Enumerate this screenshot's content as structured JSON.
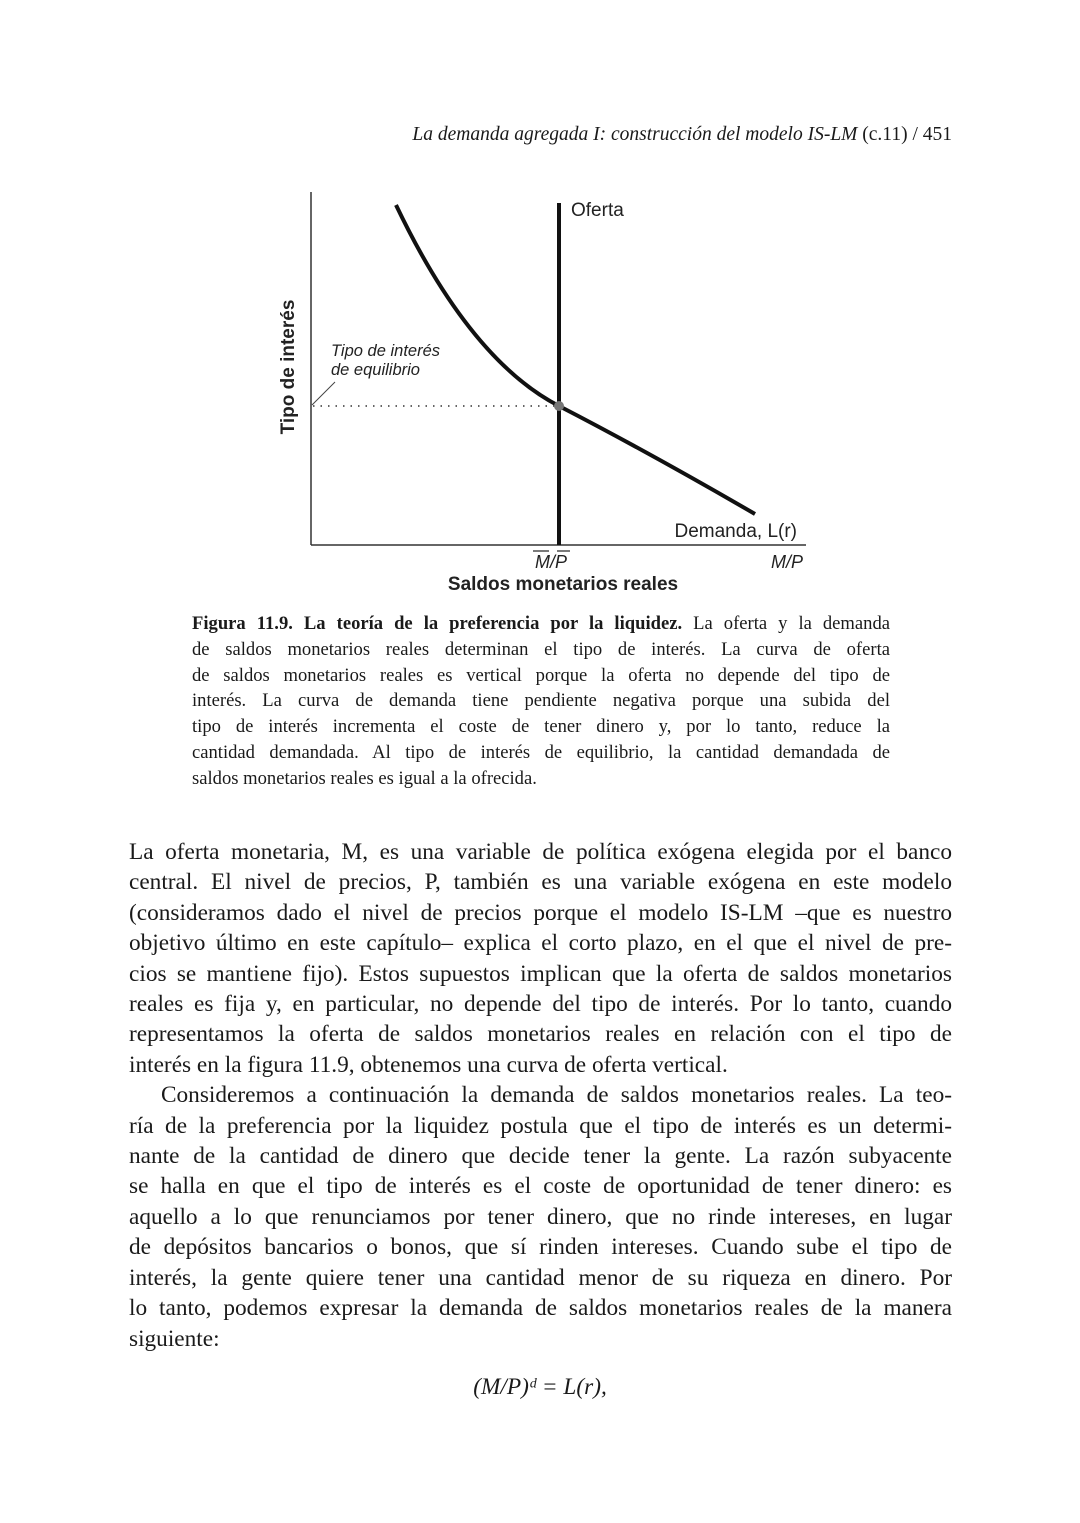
{
  "header": {
    "title": "La demanda agregada I: construcción del modelo IS-LM",
    "chapter": "(c.11)",
    "page": "/ 451"
  },
  "figure": {
    "y_axis_label": "Tipo de interés",
    "x_axis_label": "Saldos monetarios reales",
    "x_axis_end_label": "M/P",
    "x_tick_label": "M/P",
    "supply_label": "Oferta",
    "demand_label": "Demanda, L(r)",
    "equilibrium_label_line1": "Tipo de interés",
    "equilibrium_label_line2": "de equilibrio"
  },
  "caption": {
    "title": "Figura 11.9. La teoría de la preferencia por la liquidez.",
    "first_line_rest": "La oferta y la demanda",
    "lines": [
      "de saldos monetarios reales determinan el tipo de interés. La curva de oferta",
      "de saldos monetarios reales es vertical porque la oferta no depende del tipo de",
      "interés. La curva de demanda tiene pendiente negativa porque una subida del",
      "tipo de interés incrementa el coste de tener dinero y, por lo tanto, reduce la",
      "cantidad demandada. Al tipo de interés de equilibrio, la cantidad demandada de",
      "saldos monetarios reales es igual a la ofrecida."
    ]
  },
  "body": {
    "p1": [
      "La oferta monetaria, M, es una variable de política exógena elegida por el banco",
      "central. El nivel de precios, P, también es una variable exógena en este modelo",
      "(consideramos dado el nivel de precios porque el modelo IS-LM –que es nuestro",
      "objetivo último en este capítulo– explica el corto plazo, en el que el nivel de pre-",
      "cios se mantiene fijo). Estos supuestos implican que la oferta de saldos monetarios",
      "reales es fija y, en particular, no depende del tipo de interés. Por lo tanto, cuando",
      "representamos la oferta de saldos monetarios reales en relación con el tipo de",
      "interés en la figura 11.9, obtenemos una curva de oferta vertical."
    ],
    "p2": [
      "Consideremos a continuación la demanda de saldos monetarios reales. La teo-",
      "ría de la preferencia por la liquidez postula que el tipo de interés es un determi-",
      "nante de la cantidad de dinero que decide tener la gente. La razón subyacente",
      "se halla en que el tipo de interés es el coste de oportunidad de tener dinero: es",
      "aquello a lo que renunciamos por tener dinero, que no rinde intereses, en lugar",
      "de depósitos bancarios o bonos, que sí rinden intereses. Cuando sube el tipo de",
      "interés, la gente quiere tener una cantidad menor de su riqueza en dinero. Por",
      "lo tanto, podemos expresar la demanda de saldos monetarios reales de la manera",
      "siguiente:"
    ]
  },
  "equation": "(M/P)ᵈ = L(r),"
}
